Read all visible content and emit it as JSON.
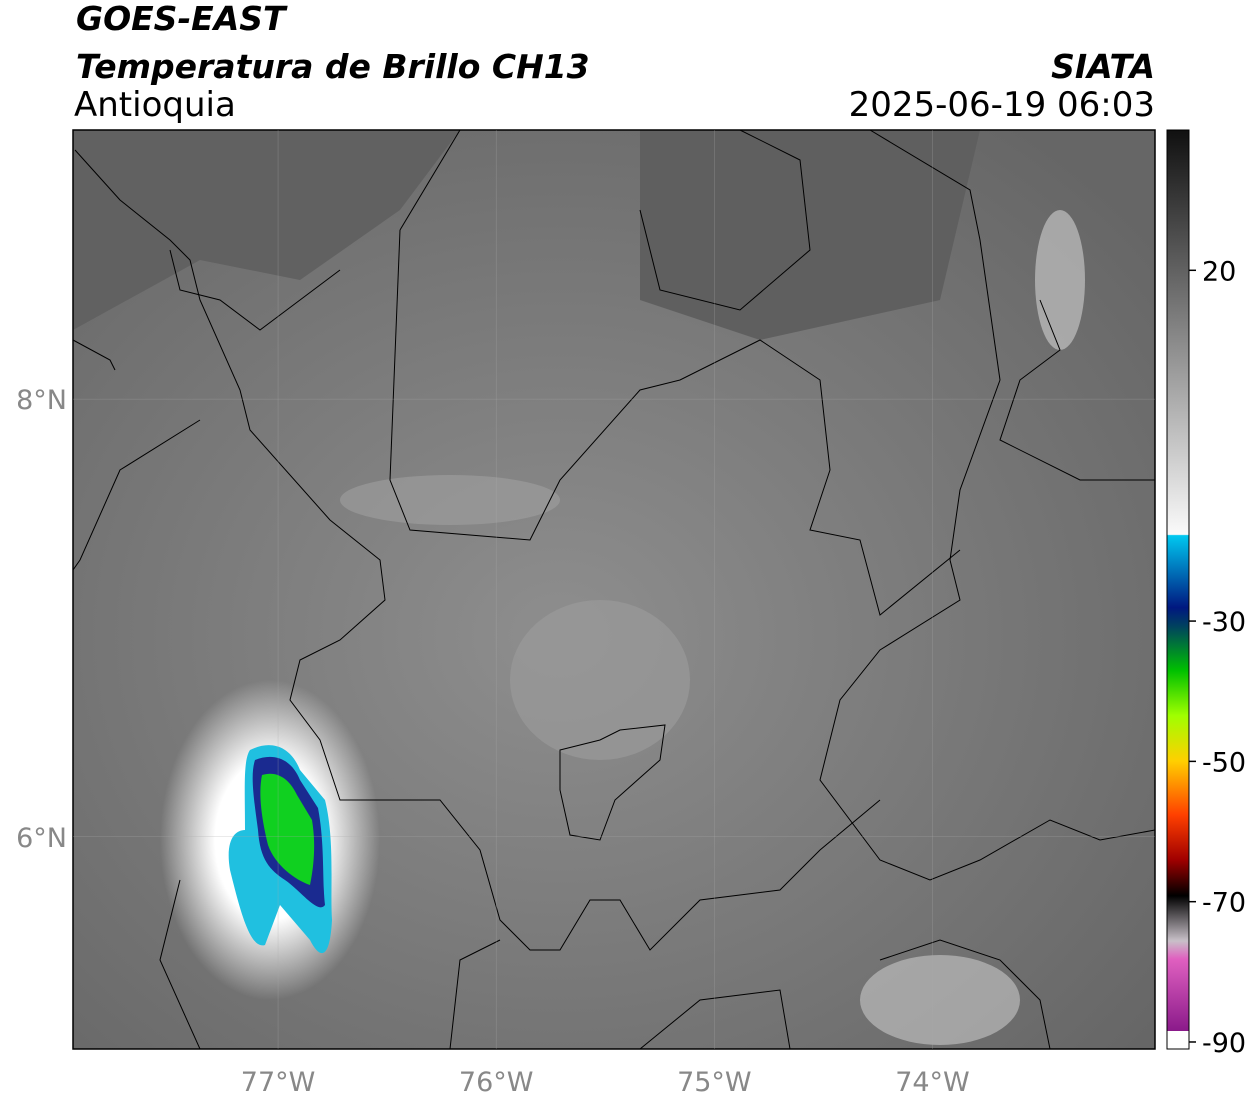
{
  "header": {
    "title": "GOES-EAST",
    "subtitle": "Temperatura de Brillo CH13",
    "region": "Antioquia",
    "source": "SIATA",
    "datetime": "2025-06-19 06:03"
  },
  "map": {
    "xlim": [
      -77.94,
      -72.98
    ],
    "ylim": [
      5.03,
      9.23
    ],
    "xticks": [
      {
        "value": -77,
        "label": "77°W"
      },
      {
        "value": -76,
        "label": "76°W"
      },
      {
        "value": -75,
        "label": "75°W"
      },
      {
        "value": -74,
        "label": "74°W"
      }
    ],
    "yticks": [
      {
        "value": 8,
        "label": "8°N"
      },
      {
        "value": 6,
        "label": "6°N"
      }
    ],
    "grid": true
  },
  "colorbar": {
    "lim": [
      -91,
      40
    ],
    "ticks": [
      20,
      -30,
      -50,
      -70,
      -90
    ]
  }
}
